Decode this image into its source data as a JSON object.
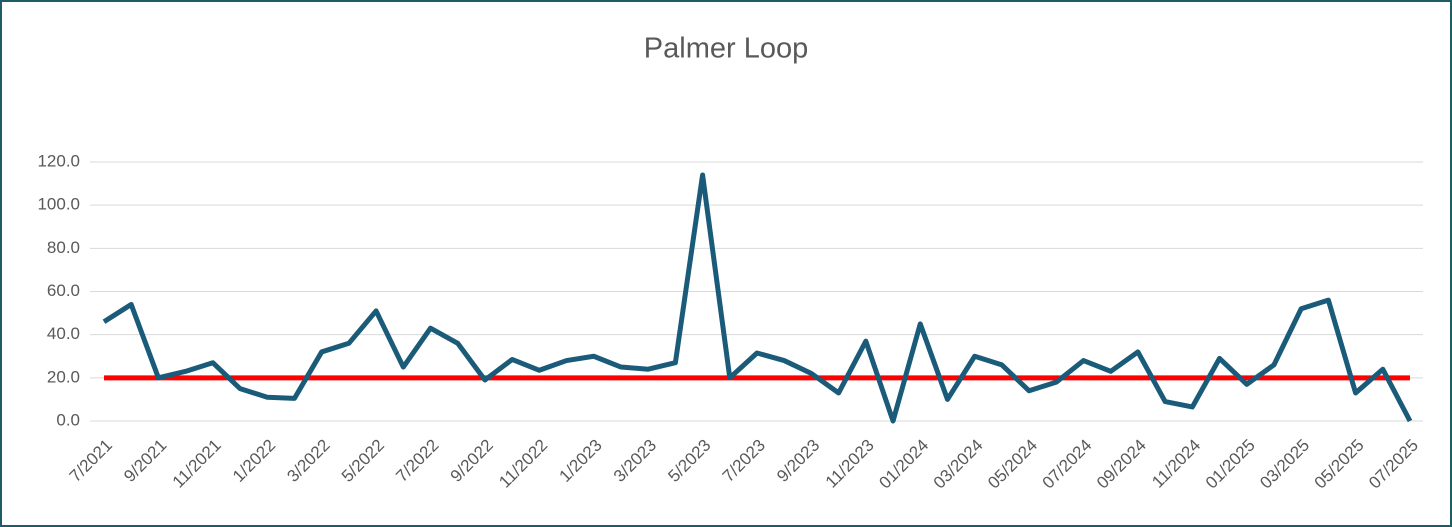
{
  "chart_data": {
    "type": "line",
    "title": "Palmer Loop",
    "categories": [
      "7/2021",
      null,
      "9/2021",
      null,
      "11/2021",
      null,
      "1/2022",
      null,
      "3/2022",
      null,
      "5/2022",
      null,
      "7/2022",
      null,
      "9/2022",
      null,
      "11/2022",
      null,
      "1/2023",
      null,
      "3/2023",
      null,
      "5/2023",
      null,
      "7/2023",
      null,
      "9/2023",
      null,
      "11/2023",
      null,
      "01/2024",
      null,
      "03/2024",
      null,
      "05/2024",
      null,
      "07/2024",
      null,
      "09/2024",
      null,
      "11/2024",
      null,
      "01/2025",
      null,
      "03/2025",
      null,
      "05/2025",
      null,
      "07/2025"
    ],
    "series": [
      {
        "color": "#1b5b7a",
        "values": [
          46,
          54,
          20,
          23,
          27,
          15,
          11,
          10.5,
          32,
          36,
          51,
          25,
          43,
          36,
          19,
          28.5,
          23.5,
          28,
          30,
          25,
          24,
          27,
          114,
          20,
          31.5,
          28,
          22,
          13,
          37,
          0,
          45,
          10,
          30,
          26,
          14,
          18,
          28,
          23,
          32,
          9,
          6.5,
          29,
          17,
          26,
          52,
          56,
          13,
          24,
          0
        ]
      }
    ],
    "reference_line": {
      "value": 20,
      "color": "#ff0000"
    },
    "ylim": [
      0,
      120
    ],
    "yticks": [
      {
        "value": 0,
        "label": "0.0"
      },
      {
        "value": 20,
        "label": "20.0"
      },
      {
        "value": 40,
        "label": "40.0"
      },
      {
        "value": 60,
        "label": "60.0"
      },
      {
        "value": 80,
        "label": "80.0"
      },
      {
        "value": 100,
        "label": "100.0"
      },
      {
        "value": 120,
        "label": "120.0"
      }
    ],
    "grid": true
  }
}
